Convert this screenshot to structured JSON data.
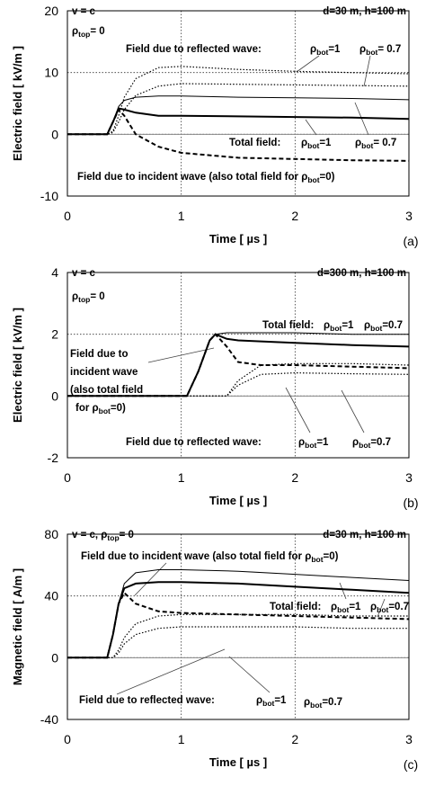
{
  "chart_data": [
    {
      "type": "line",
      "ylabel": "Electric field [ kV/m ]",
      "xlabel": "Time [ µs ]",
      "panel_label": "(a)",
      "xlim": [
        0,
        3
      ],
      "xticks": [
        0,
        1,
        2,
        3
      ],
      "ylim": [
        -10,
        20
      ],
      "yticks": [
        -10,
        0,
        10,
        20
      ],
      "grid": true,
      "x": [
        0,
        0.35,
        0.4,
        0.45,
        0.5,
        0.6,
        0.8,
        1,
        1.5,
        2,
        2.5,
        3
      ],
      "series": [
        {
          "color": "#000000",
          "style": "dashed",
          "width": 2,
          "values": [
            0,
            0,
            2,
            4,
            3,
            0,
            -2,
            -3,
            -3.8,
            -4,
            -4.2,
            -4.3
          ]
        },
        {
          "color": "#000000",
          "style": "solid",
          "width": 1,
          "values": [
            0,
            0,
            2,
            4.5,
            5.5,
            6,
            6.2,
            6.2,
            6,
            5.9,
            5.8,
            5.6
          ]
        },
        {
          "color": "#000000",
          "style": "solid",
          "width": 2,
          "values": [
            0,
            0,
            2,
            4.2,
            4,
            3.5,
            3,
            3,
            2.9,
            2.8,
            2.7,
            2.5
          ]
        },
        {
          "color": "#000000",
          "style": "dotted",
          "width": 1.2,
          "values": [
            0,
            0,
            0.5,
            3,
            6,
            9,
            10.8,
            11,
            10.5,
            10.2,
            10,
            9.8
          ]
        },
        {
          "color": "#000000",
          "style": "dotted",
          "width": 1.2,
          "values": [
            0,
            0,
            0.3,
            2,
            4,
            6.3,
            7.8,
            8.2,
            8.1,
            8,
            7.9,
            7.8
          ]
        }
      ],
      "annotations": [
        [
          "v = c"
        ],
        [
          "ρ",
          "top",
          "= 0"
        ],
        [
          "d=30 m,  h=100 m"
        ],
        [
          "Field due to reflected wave:"
        ],
        [
          "ρ",
          "bot",
          "=1"
        ],
        [
          "ρ",
          "bot",
          "= 0.7"
        ],
        [
          "Total field:"
        ],
        [
          "ρ",
          "bot",
          "=1"
        ],
        [
          "ρ",
          "bot",
          "= 0.7"
        ],
        [
          "Field due to incident wave (also total field for ",
          "ρ",
          "bot",
          "=0)"
        ]
      ]
    },
    {
      "type": "line",
      "ylabel": "Electric field [ kV/m ]",
      "xlabel": "Time [ µs ]",
      "panel_label": "(b)",
      "xlim": [
        0,
        3
      ],
      "xticks": [
        0,
        1,
        2,
        3
      ],
      "ylim": [
        -2,
        4
      ],
      "yticks": [
        -2,
        0,
        2,
        4
      ],
      "grid": true,
      "x": [
        0,
        1.05,
        1.15,
        1.25,
        1.3,
        1.4,
        1.5,
        1.7,
        2,
        2.5,
        3
      ],
      "series": [
        {
          "color": "#000000",
          "style": "dashed",
          "width": 2,
          "values": [
            0,
            0,
            0.8,
            1.8,
            2,
            1.6,
            1.1,
            1,
            1,
            0.95,
            0.9
          ]
        },
        {
          "color": "#000000",
          "style": "solid",
          "width": 1,
          "values": [
            0,
            0,
            0.8,
            1.8,
            2,
            2.05,
            2.05,
            2.05,
            2.05,
            2,
            2
          ]
        },
        {
          "color": "#000000",
          "style": "solid",
          "width": 2,
          "values": [
            0,
            0,
            0.8,
            1.8,
            2,
            1.85,
            1.8,
            1.77,
            1.72,
            1.65,
            1.6
          ]
        },
        {
          "color": "#000000",
          "style": "dotted",
          "width": 1.2,
          "values": [
            0,
            0,
            0,
            0,
            0,
            0,
            0.5,
            1,
            1.05,
            1.05,
            1
          ]
        },
        {
          "color": "#000000",
          "style": "dotted",
          "width": 1.2,
          "values": [
            0,
            0,
            0,
            0,
            0,
            0,
            0.35,
            0.7,
            0.75,
            0.72,
            0.7
          ]
        }
      ],
      "annotations": [
        [
          "v = c"
        ],
        [
          "ρ",
          "top",
          "=  0"
        ],
        [
          "d=300 m,  h=100 m"
        ],
        [
          "Total field:"
        ],
        [
          "ρ",
          "bot",
          "=1"
        ],
        [
          "ρ",
          "bot",
          "=0.7"
        ],
        [
          "Field due to"
        ],
        [
          "incident wave"
        ],
        [
          "(also total field"
        ],
        [
          "for ",
          "ρ",
          "bot",
          "=0)"
        ],
        [
          "Field due to reflected wave:"
        ],
        [
          "ρ",
          "bot",
          "=1"
        ],
        [
          "ρ",
          "bot",
          "=0.7"
        ]
      ]
    },
    {
      "type": "line",
      "ylabel": "Magnetic field [ A/m ]",
      "xlabel": "Time [ µs ]",
      "panel_label": "(c)",
      "xlim": [
        0,
        3
      ],
      "xticks": [
        0,
        1,
        2,
        3
      ],
      "ylim": [
        -40,
        80
      ],
      "yticks": [
        -40,
        0,
        40,
        80
      ],
      "grid": true,
      "x": [
        0,
        0.35,
        0.4,
        0.45,
        0.5,
        0.6,
        0.8,
        1,
        1.5,
        2,
        2.5,
        3
      ],
      "series": [
        {
          "color": "#000000",
          "style": "dashed",
          "width": 2,
          "values": [
            0,
            0,
            15,
            35,
            42,
            35,
            30,
            29,
            28,
            27,
            26,
            25
          ]
        },
        {
          "color": "#000000",
          "style": "solid",
          "width": 1,
          "values": [
            0,
            0,
            15,
            35,
            48,
            55,
            57,
            57,
            56,
            54,
            52,
            50
          ]
        },
        {
          "color": "#000000",
          "style": "solid",
          "width": 2,
          "values": [
            0,
            0,
            15,
            35,
            45,
            48,
            49,
            49,
            48,
            46,
            44,
            42
          ]
        },
        {
          "color": "#000000",
          "style": "dotted",
          "width": 1.2,
          "values": [
            0,
            0,
            0,
            5,
            13,
            22,
            27,
            28,
            28,
            28,
            27,
            27
          ]
        },
        {
          "color": "#000000",
          "style": "dotted",
          "width": 1.2,
          "values": [
            0,
            0,
            0,
            3,
            9,
            15,
            19,
            20,
            20,
            20,
            19,
            19
          ]
        }
      ],
      "annotations": [
        [
          "v = c,  ",
          "ρ",
          "top",
          "= 0"
        ],
        [
          "d=30 m,  h=100 m"
        ],
        [
          "Field due to incident wave (also total field for ",
          "ρ",
          "bot",
          "=0)"
        ],
        [
          "Total field:"
        ],
        [
          "ρ",
          "bot",
          "=1"
        ],
        [
          "ρ",
          "bot",
          "=0.7"
        ],
        [
          "Field due to reflected wave:"
        ],
        [
          "ρ",
          "bot",
          "=1"
        ],
        [
          "ρ",
          "bot",
          "=0.7"
        ]
      ]
    }
  ]
}
